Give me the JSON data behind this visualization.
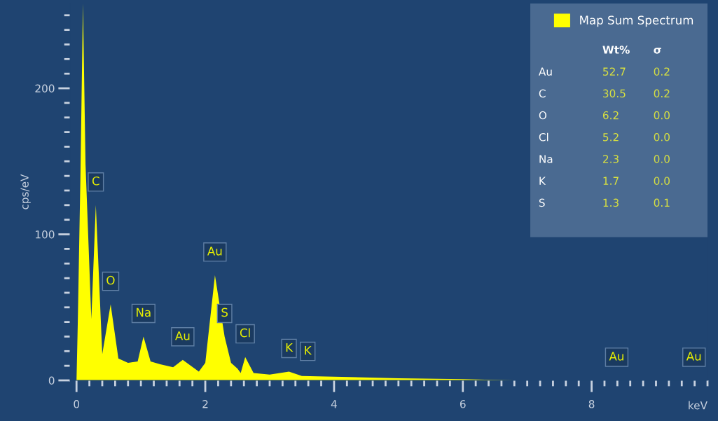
{
  "chart_data": {
    "type": "area",
    "xlabel": "keV",
    "ylabel": "cps/eV",
    "x": [
      0,
      0.02,
      0.06,
      0.1,
      0.14,
      0.23,
      0.3,
      0.4,
      0.53,
      0.65,
      0.8,
      0.95,
      1.04,
      1.15,
      1.3,
      1.5,
      1.65,
      1.9,
      2.0,
      2.15,
      2.3,
      2.4,
      2.5,
      2.55,
      2.62,
      2.75,
      3.0,
      3.3,
      3.5,
      4.0,
      5.0,
      6.0,
      6.8,
      9.8
    ],
    "series": [
      {
        "name": "Map Sum Spectrum",
        "color": "#ffff00",
        "values": [
          0,
          40,
          138,
          258,
          148,
          42,
          120,
          18,
          52,
          15,
          12,
          13,
          30,
          13,
          11,
          9,
          14,
          6,
          12,
          72,
          30,
          12,
          8,
          5,
          16,
          5,
          4,
          6,
          3,
          2.5,
          1.5,
          0.8,
          0,
          0
        ]
      }
    ],
    "xlim": [
      -0.1,
      9.8
    ],
    "ylim": [
      0,
      258
    ],
    "xticks": [
      0,
      2,
      4,
      6,
      8
    ],
    "yticks": [
      0,
      100,
      200
    ],
    "legend": "top right",
    "grid": false,
    "annotations": [
      {
        "text": "C",
        "x": 0.3,
        "y": 120
      },
      {
        "text": "O",
        "x": 0.53,
        "y": 52
      },
      {
        "text": "Na",
        "x": 1.04,
        "y": 30
      },
      {
        "text": "Au",
        "x": 1.65,
        "y": 14
      },
      {
        "text": "Au",
        "x": 2.15,
        "y": 72
      },
      {
        "text": "S",
        "x": 2.3,
        "y": 30
      },
      {
        "text": "Cl",
        "x": 2.62,
        "y": 16
      },
      {
        "text": "K",
        "x": 3.3,
        "y": 6
      },
      {
        "text": "K",
        "x": 3.59,
        "y": 4
      },
      {
        "text": "Au",
        "x": 8.39,
        "y": 0
      },
      {
        "text": "Au",
        "x": 9.59,
        "y": 0
      },
      "Wt%",
      "σ",
      "Au",
      "52.7",
      "0.2",
      "C",
      "30.5",
      "0.2",
      "O",
      "6.2",
      "0.0",
      "Cl",
      "5.2",
      "0.0",
      "Na",
      "2.3",
      "0.0",
      "K",
      "1.7",
      "0.0",
      "S",
      "1.3",
      "0.1"
    ]
  }
}
